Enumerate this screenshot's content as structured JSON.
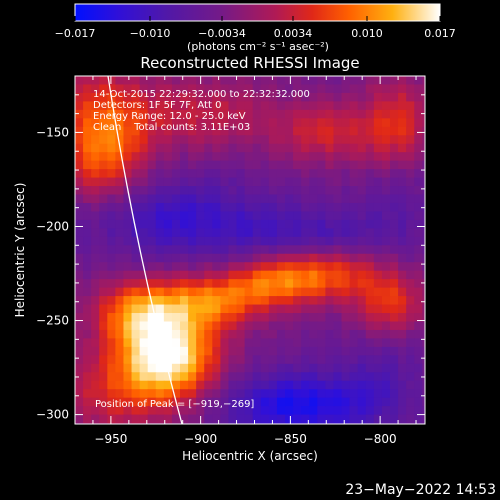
{
  "colorbar": {
    "ticks": [
      "−0.017",
      "−0.010",
      "−0.0034",
      "0.0034",
      "0.010",
      "0.017"
    ],
    "unit_label": "(photons cm⁻² s⁻¹ asec⁻²)",
    "colors": [
      "#0010ff",
      "#3a10d0",
      "#5018a8",
      "#7a1a8a",
      "#c0184a",
      "#ff3000",
      "#ff9000",
      "#ffd020",
      "#ffffff"
    ]
  },
  "chart_data": {
    "type": "heatmap",
    "title": "Reconstructed RHESSI Image",
    "xlabel": "Heliocentric X (arcsec)",
    "ylabel": "Heliocentric Y (arcsec)",
    "xlim": [
      -970,
      -775
    ],
    "ylim": [
      -305,
      -120
    ],
    "xticks": [
      -950,
      -900,
      -850,
      -800
    ],
    "yticks": [
      -150,
      -200,
      -250,
      -300
    ],
    "value_range": [
      -0.017,
      0.017
    ],
    "peak": [
      -919,
      -269
    ],
    "annotations": [
      "14-Oct-2015 22:29:32.000 to 22:32:32.000",
      "Detectors: 1F 5F 7F, Att 0",
      "Energy Range: 12.0 - 25.0 keV",
      "Clean    Total counts: 3.11E+03"
    ],
    "peak_label": "Position of Peak = [−919,−269]"
  },
  "footer": {
    "timestamp": "23−May−2022 14:53"
  }
}
